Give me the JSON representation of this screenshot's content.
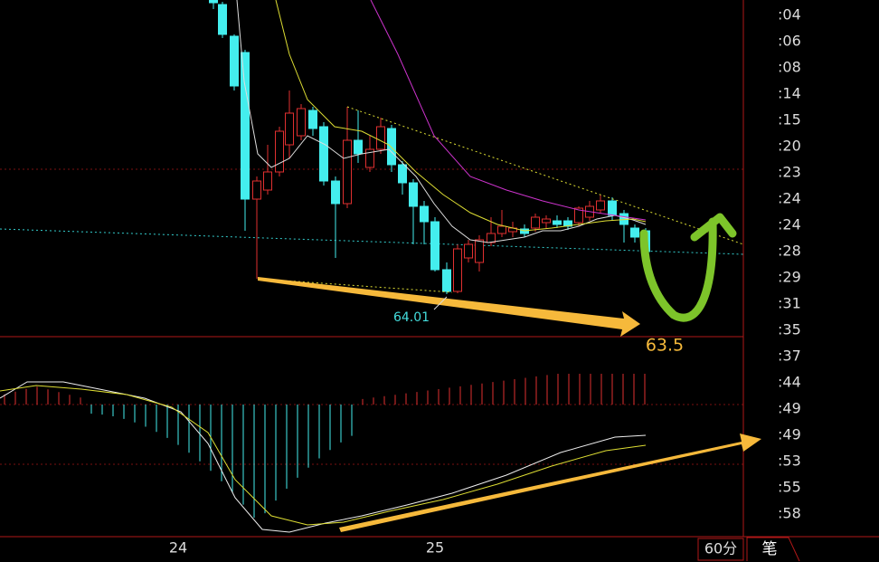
{
  "chart": {
    "low_label": "64.01",
    "target_label": "63.5"
  },
  "x_axis": {
    "labels": [
      "24",
      "25"
    ]
  },
  "period_button": "60分",
  "tick_tab": "笔",
  "tick_times": [
    ":04",
    ":06",
    ":08",
    ":14",
    ":15",
    ":20",
    ":23",
    ":24",
    ":24",
    ":28",
    ":29",
    ":31",
    ":35",
    ":37",
    ":44",
    ":49",
    ":49",
    ":53",
    ":55",
    ":58"
  ]
}
